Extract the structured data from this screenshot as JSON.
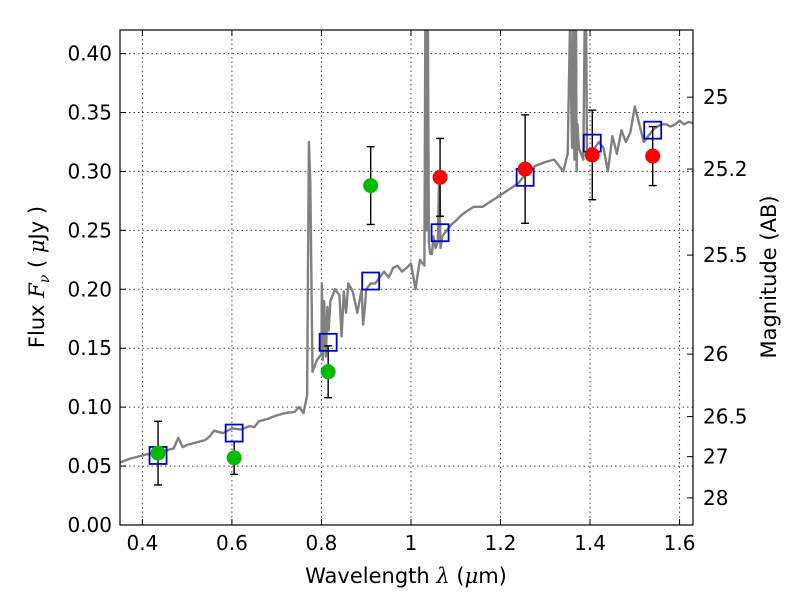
{
  "chart_data": {
    "type": "scatter",
    "xlabel": "Wavelength  λ (μm)",
    "ylabel": "Flux  F_ν  ( μJy )",
    "ylabel_parts": {
      "prefix": "Flux  ",
      "symbol": "F",
      "subscript": "ν",
      "open": "  ( ",
      "mu": "μ",
      "unit": "Jy )"
    },
    "xlabel_parts": {
      "prefix": "Wavelength  ",
      "symbol": "λ",
      "open": " (",
      "mu": "μ",
      "unit": "m)"
    },
    "y2label": "Magnitude (AB)",
    "xlim": [
      0.35,
      1.63
    ],
    "ylim": [
      0.0,
      0.42
    ],
    "grid": true,
    "xticks": [
      0.4,
      0.6,
      0.8,
      1.0,
      1.2,
      1.4,
      1.6
    ],
    "xtick_labels": [
      "0.4",
      "0.6",
      "0.8",
      "1",
      "1.2",
      "1.4",
      "1.6"
    ],
    "yticks": [
      0.0,
      0.05,
      0.1,
      0.15,
      0.2,
      0.25,
      0.3,
      0.35,
      0.4
    ],
    "ytick_labels": [
      "0.00",
      "0.05",
      "0.10",
      "0.15",
      "0.20",
      "0.25",
      "0.30",
      "0.35",
      "0.40"
    ],
    "y2ticks": [
      {
        "label": "25",
        "flux": 0.363
      },
      {
        "label": "25.2",
        "flux": 0.302
      },
      {
        "label": "25.5",
        "flux": 0.229
      },
      {
        "label": "26",
        "flux": 0.145
      },
      {
        "label": "26.5",
        "flux": 0.092
      },
      {
        "label": "27",
        "flux": 0.058
      },
      {
        "label": "28",
        "flux": 0.023
      }
    ],
    "series": [
      {
        "name": "model-spectrum",
        "kind": "line",
        "color": "#808080",
        "x": [
          0.35,
          0.37,
          0.39,
          0.41,
          0.43,
          0.45,
          0.47,
          0.48,
          0.49,
          0.5,
          0.52,
          0.54,
          0.55,
          0.56,
          0.58,
          0.6,
          0.62,
          0.64,
          0.65,
          0.66,
          0.68,
          0.7,
          0.72,
          0.74,
          0.75,
          0.76,
          0.768,
          0.772,
          0.775,
          0.78,
          0.79,
          0.8,
          0.801,
          0.803,
          0.806,
          0.81,
          0.813,
          0.816,
          0.82,
          0.83,
          0.84,
          0.845,
          0.85,
          0.855,
          0.86,
          0.87,
          0.88,
          0.89,
          0.893,
          0.897,
          0.9,
          0.91,
          0.92,
          0.93,
          0.94,
          0.95,
          0.96,
          0.97,
          0.98,
          0.99,
          1.0,
          1.01,
          1.02,
          1.03,
          1.033,
          1.035,
          1.037,
          1.04,
          1.043,
          1.047,
          1.05,
          1.055,
          1.06,
          1.063,
          1.066,
          1.07,
          1.08,
          1.09,
          1.1,
          1.11,
          1.12,
          1.14,
          1.16,
          1.18,
          1.2,
          1.22,
          1.24,
          1.26,
          1.28,
          1.3,
          1.32,
          1.34,
          1.35,
          1.355,
          1.36,
          1.362,
          1.365,
          1.368,
          1.37,
          1.372,
          1.375,
          1.38,
          1.385,
          1.39,
          1.393,
          1.395,
          1.4,
          1.41,
          1.42,
          1.43,
          1.44,
          1.45,
          1.46,
          1.47,
          1.48,
          1.49,
          1.5,
          1.51,
          1.52,
          1.53,
          1.54,
          1.55,
          1.56,
          1.57,
          1.58,
          1.59,
          1.6,
          1.61,
          1.62,
          1.63
        ],
        "y": [
          0.053,
          0.056,
          0.058,
          0.06,
          0.061,
          0.063,
          0.065,
          0.074,
          0.066,
          0.068,
          0.07,
          0.072,
          0.075,
          0.08,
          0.078,
          0.082,
          0.081,
          0.084,
          0.083,
          0.088,
          0.09,
          0.093,
          0.095,
          0.096,
          0.1,
          0.095,
          0.11,
          0.325,
          0.29,
          0.13,
          0.14,
          0.145,
          0.205,
          0.14,
          0.19,
          0.143,
          0.185,
          0.165,
          0.19,
          0.2,
          0.195,
          0.16,
          0.198,
          0.18,
          0.205,
          0.198,
          0.18,
          0.2,
          0.17,
          0.185,
          0.2,
          0.205,
          0.205,
          0.21,
          0.215,
          0.21,
          0.218,
          0.22,
          0.215,
          0.218,
          0.222,
          0.2,
          0.225,
          0.22,
          0.5,
          0.25,
          0.5,
          0.24,
          0.23,
          0.23,
          0.245,
          0.235,
          0.24,
          0.3,
          0.235,
          0.245,
          0.25,
          0.255,
          0.258,
          0.262,
          0.265,
          0.27,
          0.27,
          0.275,
          0.28,
          0.285,
          0.29,
          0.3,
          0.305,
          0.308,
          0.31,
          0.3,
          0.315,
          0.42,
          0.32,
          0.5,
          0.31,
          0.5,
          0.3,
          0.34,
          0.32,
          0.315,
          0.31,
          0.5,
          0.32,
          0.31,
          0.315,
          0.32,
          0.325,
          0.32,
          0.3,
          0.33,
          0.315,
          0.335,
          0.325,
          0.333,
          0.355,
          0.34,
          0.325,
          0.33,
          0.335,
          0.338,
          0.34,
          0.34,
          0.338,
          0.34,
          0.343,
          0.34,
          0.342,
          0.341
        ]
      },
      {
        "name": "model-photometry",
        "kind": "square",
        "color": "#0000cc",
        "x": [
          0.435,
          0.605,
          0.815,
          0.91,
          1.065,
          1.255,
          1.405,
          1.54
        ],
        "y": [
          0.059,
          0.078,
          0.155,
          0.207,
          0.248,
          0.295,
          0.324,
          0.335
        ]
      },
      {
        "name": "observed-green",
        "kind": "circle",
        "color": "#00bb00",
        "x": [
          0.435,
          0.605,
          0.815,
          0.91
        ],
        "y": [
          0.061,
          0.057,
          0.13,
          0.288
        ],
        "err": [
          0.027,
          0.014,
          0.022,
          0.033
        ]
      },
      {
        "name": "observed-red",
        "kind": "circle",
        "color": "#ff0000",
        "x": [
          1.065,
          1.255,
          1.405,
          1.54
        ],
        "y": [
          0.295,
          0.302,
          0.314,
          0.313
        ],
        "err": [
          0.033,
          0.046,
          0.038,
          0.025
        ]
      }
    ]
  }
}
